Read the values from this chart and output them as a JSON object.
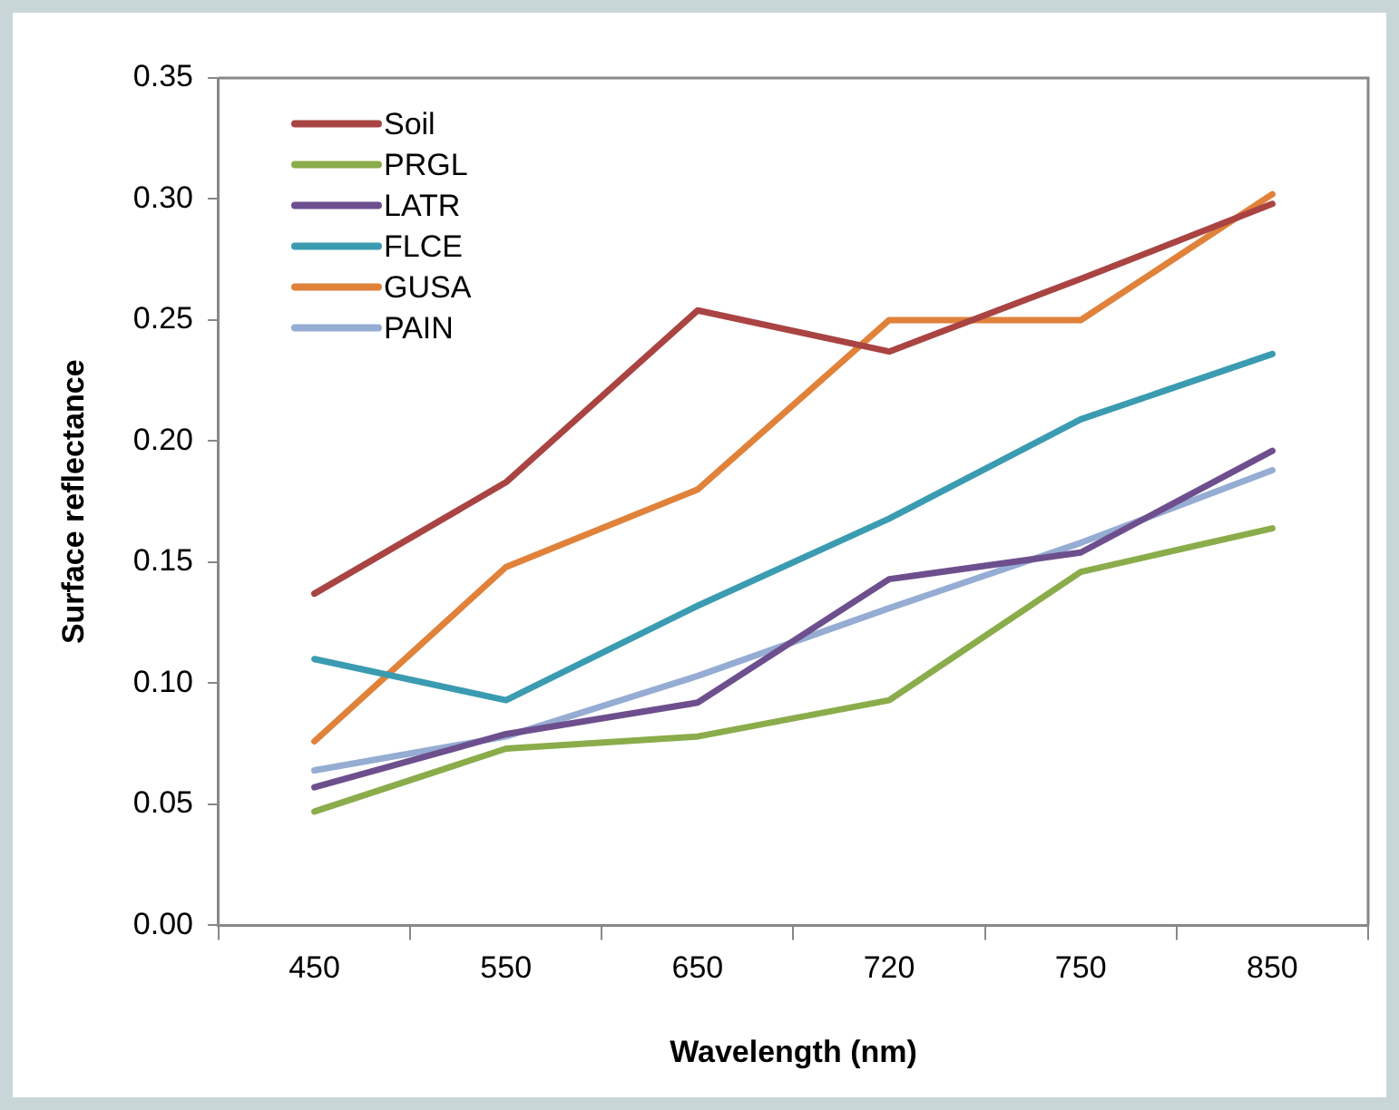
{
  "chart_data": {
    "type": "line",
    "xlabel": "Wavelength (nm)",
    "ylabel": "Surface reflectance",
    "categories": [
      "450",
      "550",
      "650",
      "720",
      "750",
      "850"
    ],
    "series": [
      {
        "name": "Soil",
        "color": "#a94442",
        "values": [
          0.137,
          0.183,
          0.254,
          0.237,
          0.267,
          0.298
        ]
      },
      {
        "name": "PRGL",
        "color": "#8bac4b",
        "values": [
          0.047,
          0.073,
          0.078,
          0.093,
          0.146,
          0.164
        ]
      },
      {
        "name": "LATR",
        "color": "#6d4f8e",
        "values": [
          0.057,
          0.079,
          0.092,
          0.143,
          0.154,
          0.196
        ]
      },
      {
        "name": "FLCE",
        "color": "#3a9bb1",
        "values": [
          0.11,
          0.093,
          0.132,
          0.168,
          0.209,
          0.236
        ]
      },
      {
        "name": "GUSA",
        "color": "#e0823a",
        "values": [
          0.076,
          0.148,
          0.18,
          0.25,
          0.25,
          0.302
        ]
      },
      {
        "name": "PAIN",
        "color": "#95acd3",
        "values": [
          0.064,
          0.078,
          0.103,
          0.131,
          0.158,
          0.188
        ]
      }
    ],
    "ylim": [
      0,
      0.35
    ],
    "yticks": [
      {
        "value": 0,
        "label": "0.00"
      },
      {
        "value": 0.05,
        "label": "0.05"
      },
      {
        "value": 0.1,
        "label": "0.10"
      },
      {
        "value": 0.15,
        "label": "0.15"
      },
      {
        "value": 0.2,
        "label": "0.20"
      },
      {
        "value": 0.25,
        "label": "0.25"
      },
      {
        "value": 0.3,
        "label": "0.30"
      },
      {
        "value": 0.35,
        "label": "0.35"
      }
    ],
    "grid": false,
    "legend": "top left",
    "marker": "none",
    "line_style": "solid"
  }
}
